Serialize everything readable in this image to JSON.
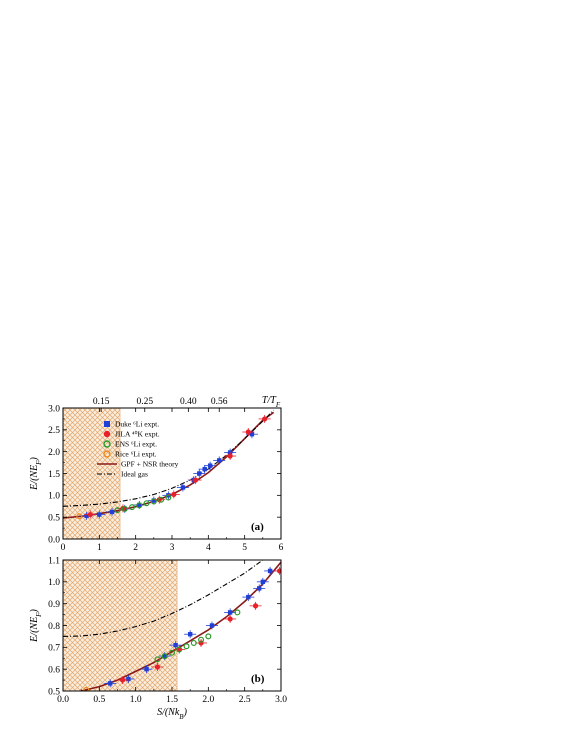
{
  "chart_data": [
    {
      "panel_label": "(a)",
      "type": "scatter",
      "xlabel": "",
      "ylabel": "E/(NE_F)",
      "xlim": [
        0,
        6
      ],
      "ylim": [
        0,
        3
      ],
      "x_ticks": [
        "0",
        "1",
        "2",
        "3",
        "4",
        "5",
        "6"
      ],
      "y_ticks": [
        "0.0",
        "0.5",
        "1.0",
        "1.5",
        "2.0",
        "2.5",
        "3.0"
      ],
      "top_axis": {
        "label": "T/T_F",
        "ticks": [
          {
            "label": "0.15",
            "x": 1.05
          },
          {
            "label": "0.25",
            "x": 2.25
          },
          {
            "label": "0.40",
            "x": 3.45
          },
          {
            "label": "0.56",
            "x": 4.3
          }
        ]
      },
      "shaded_region": {
        "x": [
          0,
          1.57
        ]
      },
      "legend_position": "top-left",
      "legend": {
        "duke": "Duke ⁶Li expt.",
        "jila": "JILA ⁴⁰K expt.",
        "ens": "ENS ⁶Li expt.",
        "rice": "Rice ⁶Li expt.",
        "theory": "GPF + NSR theory",
        "ideal": "Ideal gas"
      },
      "series": [
        {
          "name": "Duke ⁶Li expt.",
          "marker": "square",
          "color": "#1f3fd6",
          "x": [
            0.65,
            1.0,
            1.35,
            1.7,
            2.1,
            2.5,
            2.9,
            3.3,
            3.6,
            3.75,
            3.9,
            4.05,
            4.3,
            4.6,
            5.2
          ],
          "y": [
            0.53,
            0.56,
            0.62,
            0.69,
            0.78,
            0.88,
            1.0,
            1.18,
            1.35,
            1.5,
            1.6,
            1.68,
            1.8,
            1.98,
            2.4
          ]
        },
        {
          "name": "JILA ⁴⁰K expt.",
          "marker": "circle",
          "color": "#e8202a",
          "x": [
            0.75,
            1.65,
            2.65,
            3.05,
            3.65,
            4.6,
            5.1,
            5.55
          ],
          "y": [
            0.56,
            0.7,
            0.9,
            1.02,
            1.35,
            1.9,
            2.45,
            2.75
          ]
        },
        {
          "name": "ENS ⁶Li expt.",
          "marker": "open-circle",
          "color": "#2a9a2a",
          "x": [
            1.5,
            1.7,
            1.9,
            2.1,
            2.3,
            2.5,
            2.7,
            2.9
          ],
          "y": [
            0.66,
            0.69,
            0.73,
            0.77,
            0.82,
            0.86,
            0.9,
            0.95
          ]
        },
        {
          "name": "Rice ⁶Li expt.",
          "marker": "open-circle",
          "color": "#f08a1a",
          "x": [
            0.45
          ],
          "y": [
            0.52
          ]
        },
        {
          "name": "GPF + NSR theory",
          "type": "line",
          "color": "#8b1a1a",
          "x": [
            0,
            0.5,
            1.0,
            1.5,
            2.0,
            2.5,
            3.0,
            3.5,
            4.0,
            4.5,
            5.0,
            5.5,
            5.8
          ],
          "y": [
            0.48,
            0.52,
            0.58,
            0.65,
            0.74,
            0.86,
            1.02,
            1.24,
            1.52,
            1.88,
            2.3,
            2.72,
            2.9
          ]
        },
        {
          "name": "Ideal gas",
          "type": "line",
          "style": "dash-dot",
          "color": "#000000",
          "x": [
            0,
            0.5,
            1.0,
            1.5,
            2.0,
            2.5,
            3.0,
            3.5,
            4.0,
            4.5,
            5.0,
            5.5,
            5.8
          ],
          "y": [
            0.75,
            0.77,
            0.8,
            0.85,
            0.92,
            1.02,
            1.16,
            1.35,
            1.6,
            1.92,
            2.3,
            2.7,
            2.95
          ]
        }
      ]
    },
    {
      "panel_label": "(b)",
      "type": "scatter",
      "xlabel": "S/(Nk_B)",
      "ylabel": "E/(NE_F)",
      "xlim": [
        0,
        3
      ],
      "ylim": [
        0.5,
        1.1
      ],
      "x_ticks": [
        "0.0",
        "0.5",
        "1.0",
        "1.5",
        "2.0",
        "2.5",
        "3.0"
      ],
      "y_ticks": [
        "0.5",
        "0.6",
        "0.7",
        "0.8",
        "0.9",
        "1.0",
        "1.1"
      ],
      "shaded_region": {
        "x": [
          0,
          1.57
        ]
      },
      "series": [
        {
          "name": "Duke ⁶Li expt.",
          "marker": "square",
          "color": "#1f3fd6",
          "x": [
            0.65,
            0.9,
            1.15,
            1.4,
            1.55,
            1.75,
            2.05,
            2.3,
            2.55,
            2.7,
            2.75,
            2.85
          ],
          "y": [
            0.535,
            0.555,
            0.6,
            0.66,
            0.71,
            0.76,
            0.8,
            0.86,
            0.93,
            0.97,
            1.0,
            1.05
          ]
        },
        {
          "name": "JILA ⁴⁰K expt.",
          "marker": "circle",
          "color": "#e8202a",
          "x": [
            0.82,
            1.3,
            1.6,
            1.9,
            2.3,
            2.65,
            2.98
          ],
          "y": [
            0.55,
            0.61,
            0.69,
            0.72,
            0.83,
            0.89,
            1.05
          ]
        },
        {
          "name": "ENS ⁶Li expt.",
          "marker": "open-circle",
          "color": "#2a9a2a",
          "x": [
            1.3,
            1.4,
            1.5,
            1.6,
            1.7,
            1.8,
            1.9,
            2.0,
            2.4
          ],
          "y": [
            0.645,
            0.66,
            0.675,
            0.69,
            0.705,
            0.72,
            0.735,
            0.75,
            0.86
          ]
        },
        {
          "name": "Rice ⁶Li expt.",
          "marker": "open-circle",
          "color": "#f08a1a",
          "x": [
            0.32
          ],
          "y": [
            0.505
          ]
        },
        {
          "name": "GPF + NSR theory",
          "type": "line",
          "color": "#8b1a1a",
          "x": [
            0.25,
            0.5,
            0.75,
            1.0,
            1.25,
            1.5,
            1.75,
            2.0,
            2.25,
            2.5,
            2.75,
            3.0
          ],
          "y": [
            0.5,
            0.52,
            0.55,
            0.59,
            0.63,
            0.68,
            0.73,
            0.78,
            0.84,
            0.91,
            0.99,
            1.09
          ]
        },
        {
          "name": "Ideal gas",
          "type": "line",
          "style": "dash-dot",
          "color": "#000000",
          "x": [
            0,
            0.25,
            0.5,
            0.75,
            1.0,
            1.25,
            1.5,
            1.75,
            2.0,
            2.25,
            2.5,
            2.75
          ],
          "y": [
            0.75,
            0.752,
            0.76,
            0.775,
            0.795,
            0.82,
            0.855,
            0.895,
            0.94,
            0.99,
            1.04,
            1.1
          ]
        }
      ]
    }
  ]
}
